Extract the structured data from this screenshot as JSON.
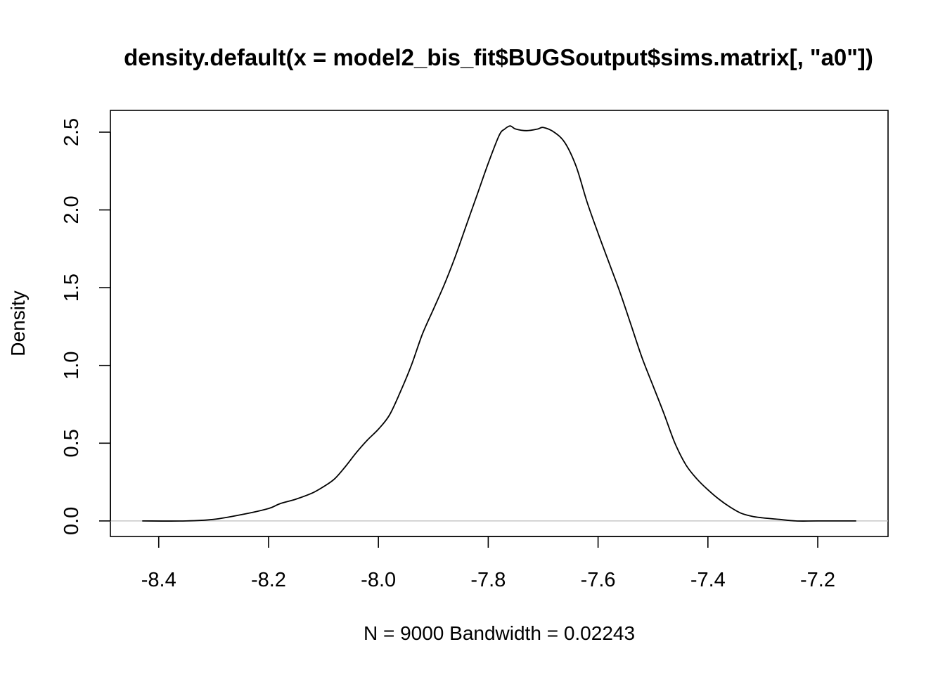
{
  "chart_data": {
    "type": "line",
    "title": "density.default(x = model2_bis_fit$BUGSoutput$sims.matrix[, \"a0\"])",
    "xlabel": "N = 9000   Bandwidth = 0.02243",
    "ylabel": "Density",
    "xlim": [
      -8.488,
      -7.072
    ],
    "ylim": [
      -0.1,
      2.64
    ],
    "x_ticks": [
      -8.4,
      -8.2,
      -8.0,
      -7.8,
      -7.6,
      -7.4,
      -7.2
    ],
    "x_tick_labels": [
      "-8.4",
      "-8.2",
      "-8.0",
      "-7.8",
      "-7.6",
      "-7.4",
      "-7.2"
    ],
    "y_ticks": [
      0.0,
      0.5,
      1.0,
      1.5,
      2.0,
      2.5
    ],
    "y_tick_labels": [
      "0.0",
      "0.5",
      "1.0",
      "1.5",
      "2.0",
      "2.5"
    ],
    "grid": false,
    "legend": "none",
    "zero_line": true,
    "colors": {
      "line": "#000000",
      "zero_line": "#bebebe",
      "axes": "#000000",
      "background": "#ffffff"
    },
    "series": [
      {
        "x": [
          -8.43,
          -8.35,
          -8.3,
          -8.25,
          -8.2,
          -8.18,
          -8.15,
          -8.12,
          -8.1,
          -8.08,
          -8.06,
          -8.04,
          -8.02,
          -8.0,
          -7.98,
          -7.96,
          -7.94,
          -7.92,
          -7.9,
          -7.88,
          -7.86,
          -7.84,
          -7.82,
          -7.8,
          -7.78,
          -7.77,
          -7.76,
          -7.75,
          -7.73,
          -7.71,
          -7.7,
          -7.68,
          -7.66,
          -7.64,
          -7.62,
          -7.6,
          -7.58,
          -7.56,
          -7.54,
          -7.52,
          -7.5,
          -7.48,
          -7.46,
          -7.44,
          -7.42,
          -7.4,
          -7.38,
          -7.36,
          -7.34,
          -7.32,
          -7.3,
          -7.27,
          -7.24,
          -7.2,
          -7.13
        ],
        "y": [
          0.0,
          0.0,
          0.01,
          0.04,
          0.08,
          0.11,
          0.14,
          0.18,
          0.22,
          0.27,
          0.35,
          0.44,
          0.52,
          0.59,
          0.68,
          0.83,
          1.0,
          1.2,
          1.36,
          1.52,
          1.7,
          1.9,
          2.1,
          2.3,
          2.48,
          2.52,
          2.54,
          2.52,
          2.51,
          2.52,
          2.53,
          2.5,
          2.43,
          2.28,
          2.05,
          1.85,
          1.66,
          1.47,
          1.26,
          1.05,
          0.87,
          0.69,
          0.5,
          0.36,
          0.27,
          0.2,
          0.14,
          0.09,
          0.05,
          0.03,
          0.02,
          0.01,
          0.0,
          0.0,
          0.0
        ]
      }
    ]
  }
}
